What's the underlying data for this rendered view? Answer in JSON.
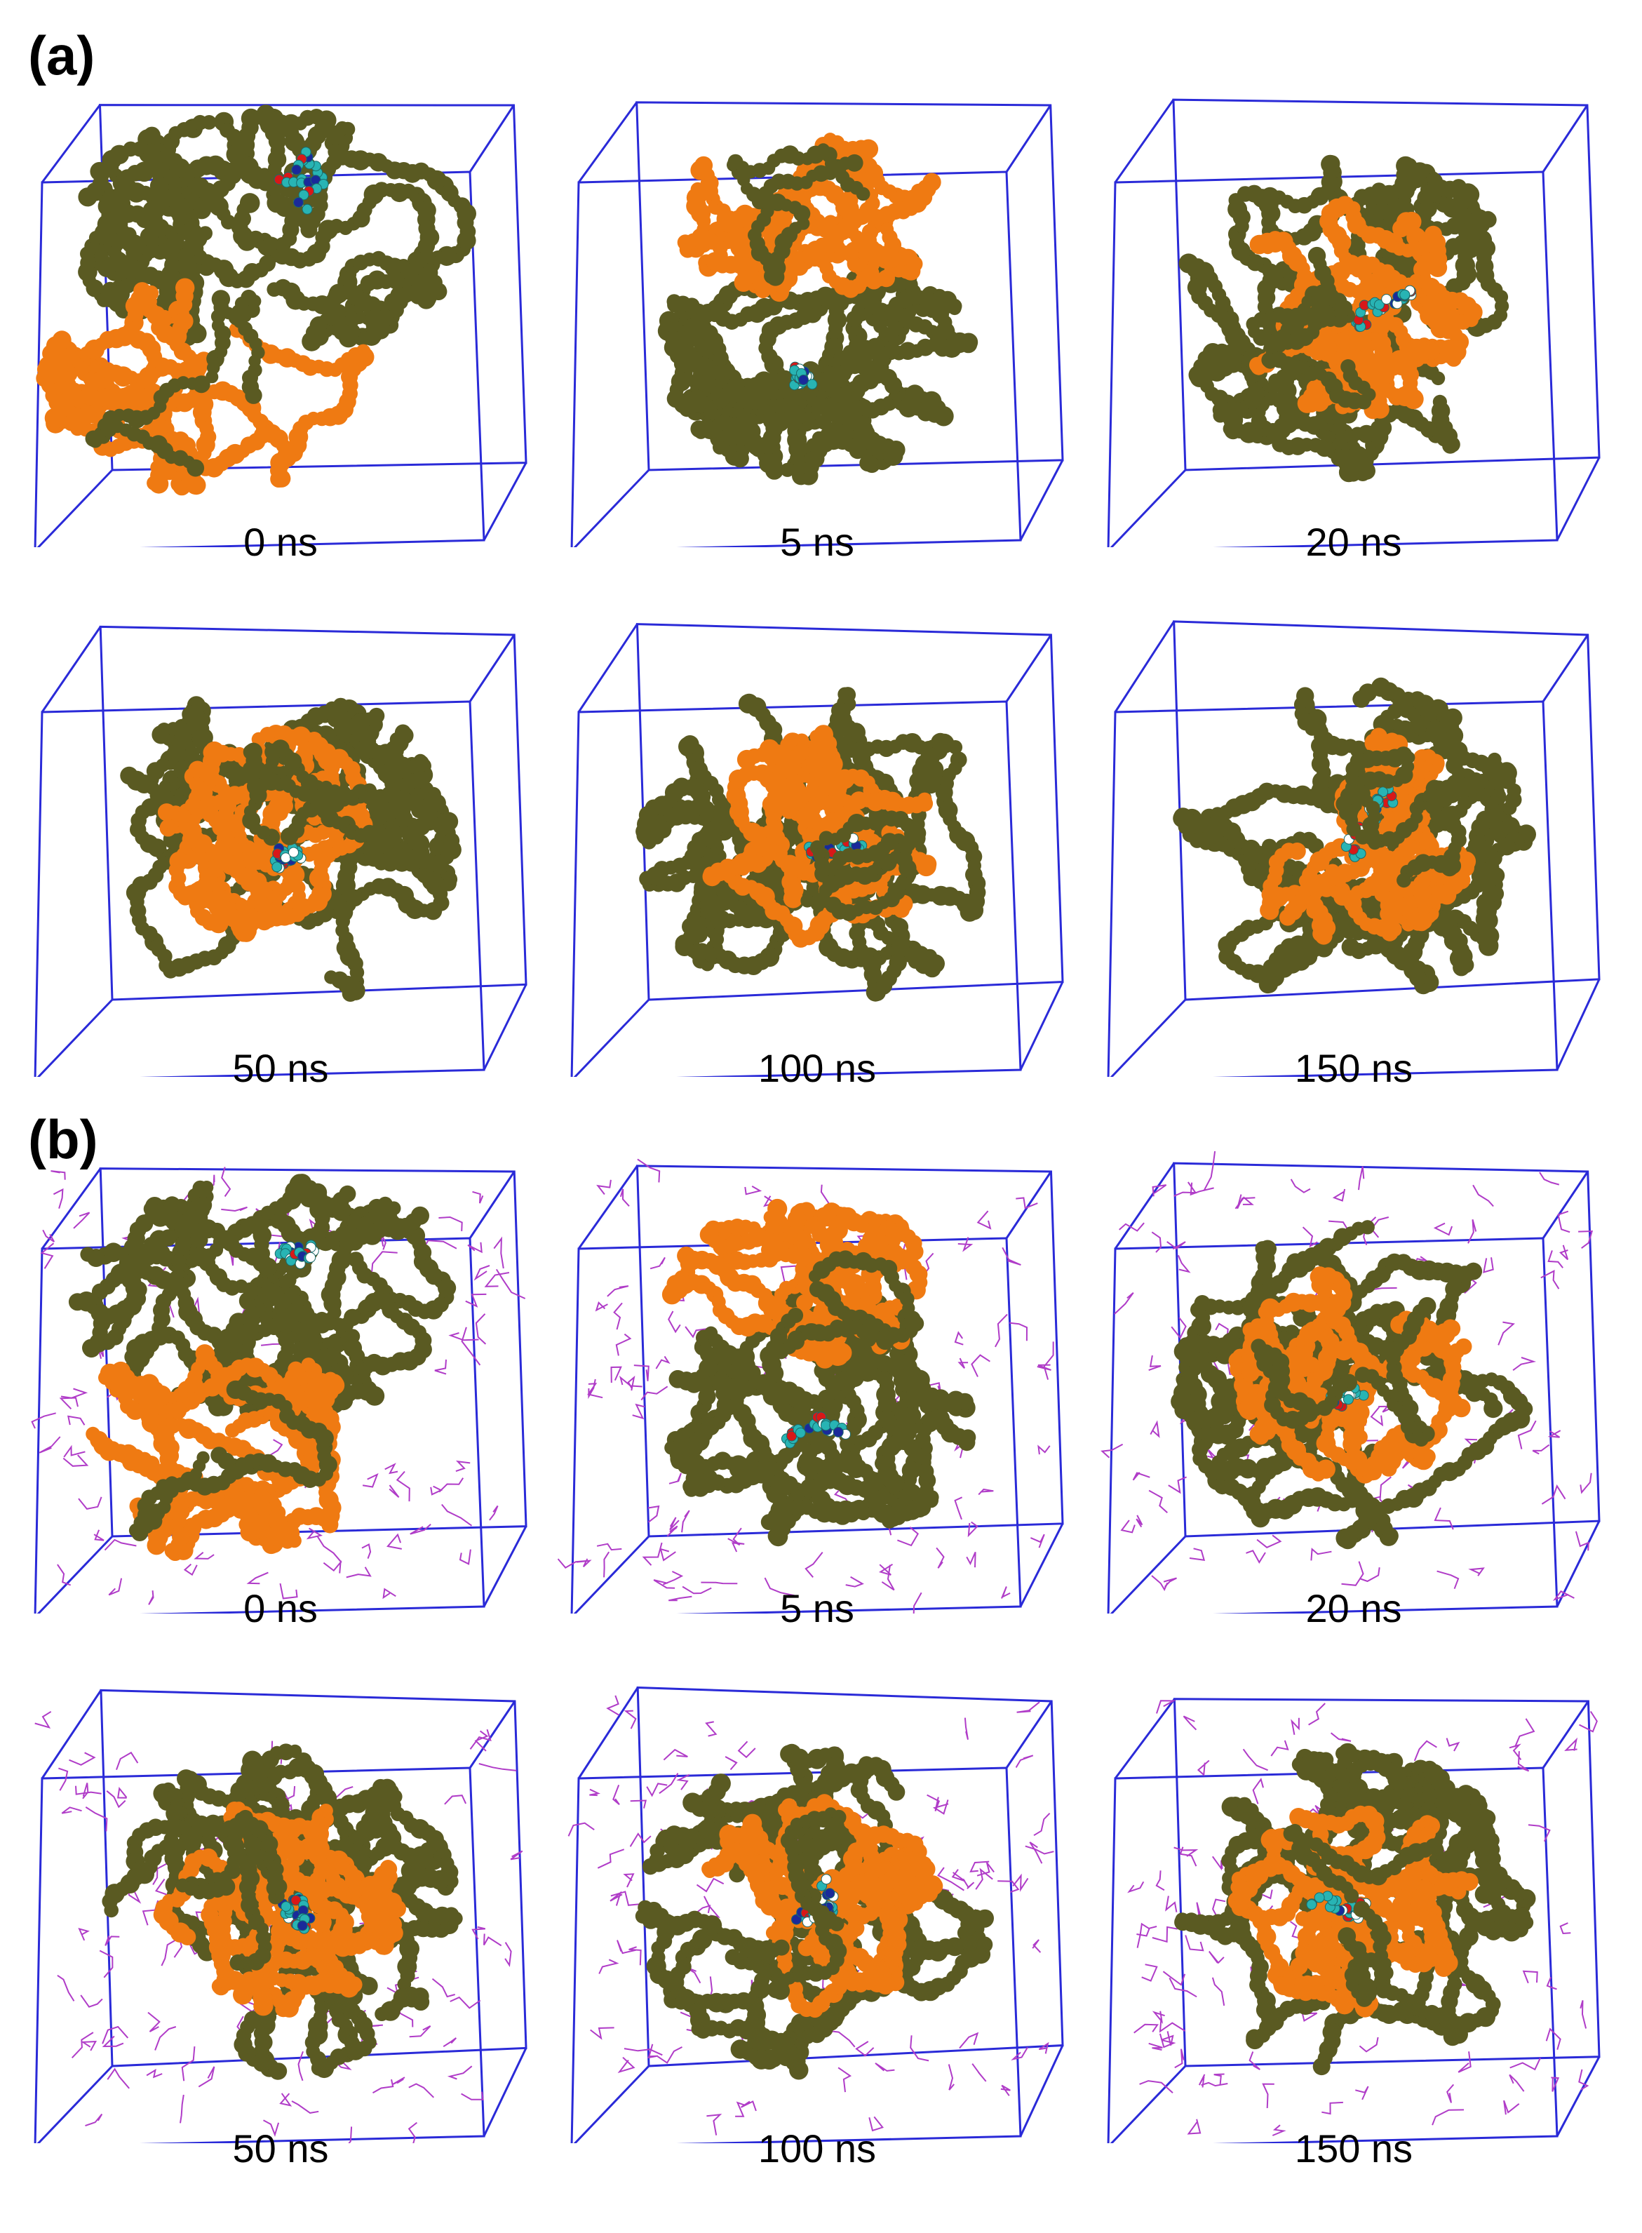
{
  "panels": [
    {
      "letter": "(a)",
      "solvent": false,
      "snapshots": [
        {
          "time": "0 ns",
          "state": "extended"
        },
        {
          "time": "5 ns",
          "state": "partial"
        },
        {
          "time": "20 ns",
          "state": "compact"
        },
        {
          "time": "50 ns",
          "state": "compact"
        },
        {
          "time": "100 ns",
          "state": "compact"
        },
        {
          "time": "150 ns",
          "state": "compact"
        }
      ]
    },
    {
      "letter": "(b)",
      "solvent": true,
      "snapshots": [
        {
          "time": "0 ns",
          "state": "extended"
        },
        {
          "time": "5 ns",
          "state": "partial"
        },
        {
          "time": "20 ns",
          "state": "compact"
        },
        {
          "time": "50 ns",
          "state": "compact"
        },
        {
          "time": "100 ns",
          "state": "compact"
        },
        {
          "time": "150 ns",
          "state": "compact"
        }
      ]
    }
  ],
  "colors": {
    "box": "#2a2ad8",
    "polymer_dark": "#5a5a22",
    "polymer_orange": "#ef7a12",
    "drug_cyan": "#28b4b4",
    "drug_red": "#d81818",
    "drug_blue": "#1a2a9a",
    "solvent_magenta": "#b03cc8"
  }
}
